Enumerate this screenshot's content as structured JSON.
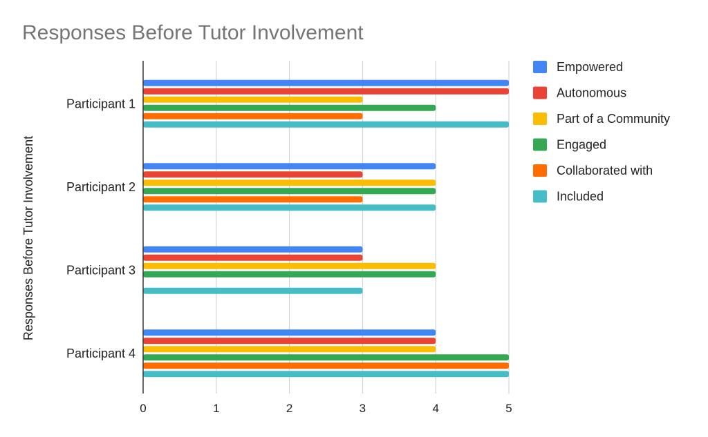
{
  "chart_data": {
    "type": "bar",
    "orientation": "horizontal",
    "title": "Responses Before Tutor Involvement",
    "xlabel": "",
    "ylabel": "Responses Before Tutor Involvement",
    "categories": [
      "Participant 1",
      "Participant 2",
      "Participant 3",
      "Participant 4"
    ],
    "xlim": [
      0,
      5
    ],
    "xticks": [
      "0",
      "1",
      "2",
      "3",
      "4",
      "5"
    ],
    "grid": true,
    "legend_position": "right",
    "series": [
      {
        "name": "Empowered",
        "color": "#4285F4",
        "values": [
          5,
          4,
          3,
          4
        ]
      },
      {
        "name": "Autonomous",
        "color": "#EA4335",
        "values": [
          5,
          3,
          3,
          4
        ]
      },
      {
        "name": "Part of a Community",
        "color": "#FBBC04",
        "values": [
          3,
          4,
          4,
          4
        ]
      },
      {
        "name": "Engaged",
        "color": "#34A853",
        "values": [
          4,
          4,
          4,
          5
        ]
      },
      {
        "name": "Collaborated with",
        "color": "#FF6D01",
        "values": [
          3,
          3,
          0,
          5
        ]
      },
      {
        "name": "Included",
        "color": "#46BDC6",
        "values": [
          5,
          4,
          3,
          5
        ]
      }
    ]
  }
}
